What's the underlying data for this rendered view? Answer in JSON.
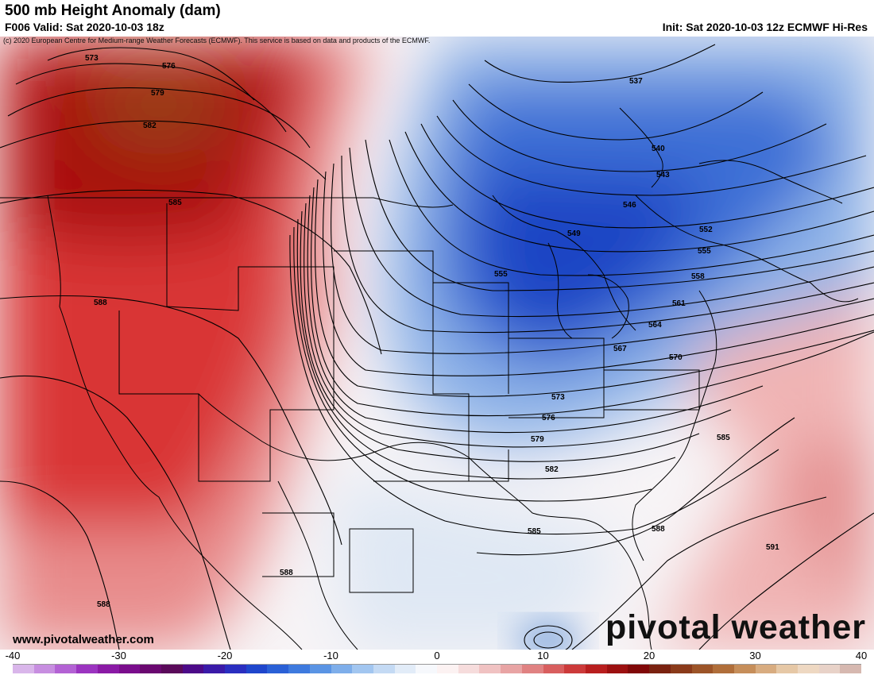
{
  "header": {
    "title": "500 mb Height Anomaly (dam)",
    "valid": "F006 Valid: Sat 2020-10-03 18z",
    "init": "Init: Sat 2020-10-03 12z ECMWF Hi-Res",
    "copyright": "(c) 2020 European Centre for Medium-range Weather Forecasts (ECMWF). This service is based on data and products of the ECMWF."
  },
  "footer": {
    "site": "www.pivotalweather.com",
    "brand": "pivotal weather"
  },
  "contours": [
    {
      "id": "573a",
      "label": "573"
    },
    {
      "id": "576a",
      "label": "576"
    },
    {
      "id": "579a",
      "label": "579"
    },
    {
      "id": "582a",
      "label": "582"
    },
    {
      "id": "585a",
      "label": "585"
    },
    {
      "id": "588a",
      "label": "588"
    },
    {
      "id": "537",
      "label": "537"
    },
    {
      "id": "540",
      "label": "540"
    },
    {
      "id": "543",
      "label": "543"
    },
    {
      "id": "546",
      "label": "546"
    },
    {
      "id": "549",
      "label": "549"
    },
    {
      "id": "552",
      "label": "552"
    },
    {
      "id": "555a",
      "label": "555"
    },
    {
      "id": "555b",
      "label": "555"
    },
    {
      "id": "558",
      "label": "558"
    },
    {
      "id": "561",
      "label": "561"
    },
    {
      "id": "564",
      "label": "564"
    },
    {
      "id": "567",
      "label": "567"
    },
    {
      "id": "570",
      "label": "570"
    },
    {
      "id": "573b",
      "label": "573"
    },
    {
      "id": "576b",
      "label": "576"
    },
    {
      "id": "579b",
      "label": "579"
    },
    {
      "id": "582b",
      "label": "582"
    },
    {
      "id": "585b",
      "label": "585"
    },
    {
      "id": "585c",
      "label": "585"
    },
    {
      "id": "588b",
      "label": "588"
    },
    {
      "id": "588c",
      "label": "588"
    },
    {
      "id": "588d",
      "label": "588"
    },
    {
      "id": "591",
      "label": "591"
    }
  ],
  "colorbar": {
    "ticks": [
      "-40",
      "-30",
      "-20",
      "-10",
      "0",
      "10",
      "20",
      "30",
      "40"
    ],
    "min": -40,
    "max": 40,
    "colors": [
      "#d9b6ea",
      "#c78ee0",
      "#b362d4",
      "#9b34c0",
      "#8a1aa5",
      "#7a0d8c",
      "#6a0870",
      "#5a0a5a",
      "#4c0a88",
      "#3a1aa8",
      "#2a2ec0",
      "#1f46cc",
      "#2a60d6",
      "#3e7ade",
      "#5a94e4",
      "#7eaeea",
      "#a2c6f0",
      "#c4daf4",
      "#e2ecf8",
      "#f6f8fc",
      "#fcf2f2",
      "#f6dcdc",
      "#f0c2c2",
      "#e8a4a4",
      "#e08282",
      "#d85e5e",
      "#cc3a3a",
      "#b81e1e",
      "#9c1010",
      "#800808",
      "#7a2210",
      "#8a3a1a",
      "#9c5428",
      "#b06e3a",
      "#c68e5a",
      "#d8ac80",
      "#e6c8a6",
      "#eed8c2",
      "#e8d2c8",
      "#d6b8b0"
    ]
  }
}
